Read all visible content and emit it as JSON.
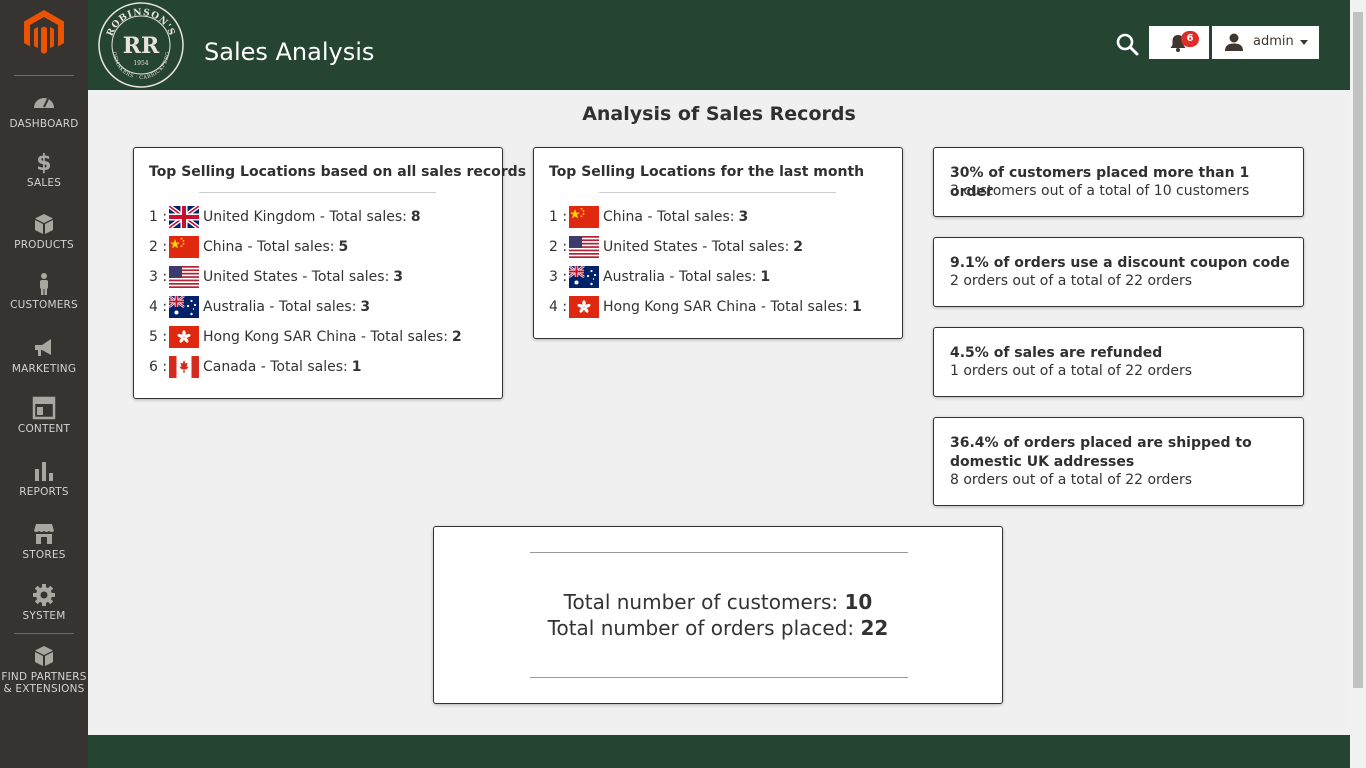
{
  "app": {
    "title": "Sales Analysis",
    "accent": "#254432",
    "sidebar_bg": "#373330",
    "logo_color": "#eb5202"
  },
  "sidebar": {
    "items": [
      {
        "label": "DASHBOARD",
        "icon": "dashboard-icon"
      },
      {
        "label": "SALES",
        "icon": "dollar-icon"
      },
      {
        "label": "PRODUCTS",
        "icon": "box-icon"
      },
      {
        "label": "CUSTOMERS",
        "icon": "person-icon"
      },
      {
        "label": "MARKETING",
        "icon": "megaphone-icon"
      },
      {
        "label": "CONTENT",
        "icon": "layout-icon"
      },
      {
        "label": "REPORTS",
        "icon": "bar-chart-icon"
      },
      {
        "label": "STORES",
        "icon": "store-icon"
      },
      {
        "label": "SYSTEM",
        "icon": "gear-icon"
      },
      {
        "label1": "FIND PARTNERS",
        "label2": "& EXTENSIONS",
        "icon": "extensions-icon"
      }
    ]
  },
  "header": {
    "brand_top": "ROBINSON'S",
    "brand_mono": "RR",
    "brand_year": "1954",
    "brand_bottom": "SHOEMAKERS · CARRICKFERGUS",
    "notifications_count": "6",
    "user_name": "admin"
  },
  "main": {
    "title": "Analysis of Sales Records",
    "all_time": {
      "title": "Top Selling Locations based on all sales records",
      "rows": [
        {
          "idx": "1 :",
          "country": "United Kingdom - Total sales:",
          "count": "8",
          "flag": "uk"
        },
        {
          "idx": "2 :",
          "country": "China - Total sales:",
          "count": "5",
          "flag": "cn"
        },
        {
          "idx": "3 :",
          "country": "United States - Total sales:",
          "count": "3",
          "flag": "us"
        },
        {
          "idx": "4 :",
          "country": "Australia - Total sales:",
          "count": "3",
          "flag": "au"
        },
        {
          "idx": "5 :",
          "country": "Hong Kong SAR China - Total sales:",
          "count": "2",
          "flag": "hk"
        },
        {
          "idx": "6 :",
          "country": "Canada - Total sales:",
          "count": "1",
          "flag": "ca"
        }
      ]
    },
    "last_month": {
      "title": "Top Selling Locations for the last month",
      "rows": [
        {
          "idx": "1 :",
          "country": "China - Total sales:",
          "count": "3",
          "flag": "cn"
        },
        {
          "idx": "2 :",
          "country": "United States - Total sales:",
          "count": "2",
          "flag": "us"
        },
        {
          "idx": "3 :",
          "country": "Australia - Total sales:",
          "count": "1",
          "flag": "au"
        },
        {
          "idx": "4 :",
          "country": "Hong Kong SAR China - Total sales:",
          "count": "1",
          "flag": "hk"
        }
      ]
    },
    "stats": [
      {
        "title": "30% of customers placed more than 1 order",
        "sub": "3 customers out of a total of 10 customers"
      },
      {
        "title": "9.1% of orders use a discount coupon code",
        "sub": "2 orders out of a total of 22 orders"
      },
      {
        "title": "4.5% of sales are refunded",
        "sub": "1 orders out of a total of 22 orders"
      },
      {
        "title": "36.4% of orders placed are shipped to domestic UK addresses",
        "sub": "8 orders out of a total of 22 orders"
      }
    ],
    "totals": {
      "customers_label": "Total number of customers:",
      "customers_value": "10",
      "orders_label": "Total number of orders placed:",
      "orders_value": "22"
    }
  }
}
